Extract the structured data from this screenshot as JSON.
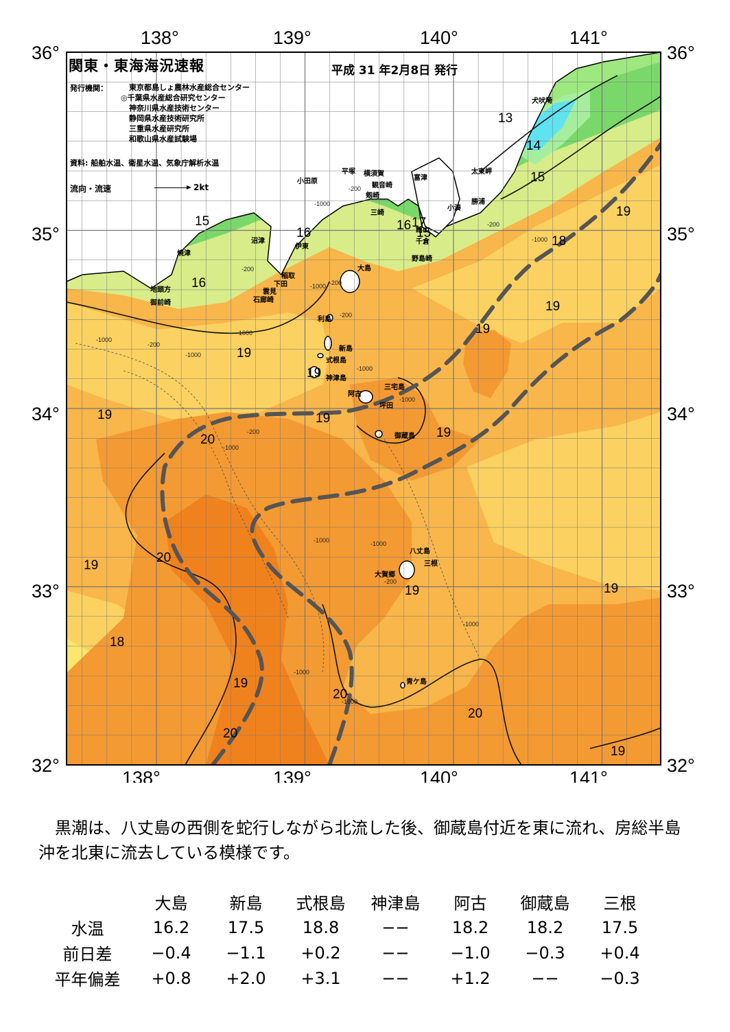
{
  "title": "関東・東海海況速報",
  "issue_date": "平成 31 年2月8日 発行",
  "issuers_label": "発行機関：",
  "issuers": [
    "東京都島しょ農林水産総合センター",
    "◎千葉県水産総合研究センター",
    "神奈川県水産技術センター",
    "静岡県水産技術研究所",
    "三重県水産研究所",
    "和歌山県水産試験場"
  ],
  "sources": "資料: 船舶水温、衛星水温、気象庁解析水温",
  "flow_legend": {
    "label": "流向・流速",
    "scale": "2kt"
  },
  "axes": {
    "lon_top": [
      "138°",
      "139°",
      "140°",
      "141°"
    ],
    "lon_bottom": [
      "138°",
      "139°",
      "140°",
      "141°"
    ],
    "lat_left": [
      "36°",
      "35°",
      "34°",
      "33°",
      "32°"
    ],
    "lat_right": [
      "36°",
      "35°",
      "34°",
      "33°",
      "32°"
    ]
  },
  "map": {
    "colors": {
      "sst_12": "#5fe3f0",
      "sst_13": "#a6ee9e",
      "sst_14": "#9ee880",
      "sst_15": "#7ad86a",
      "sst_16": "#d8ec8a",
      "sst_17": "#fbe66e",
      "sst_18": "#fbd261",
      "sst_19": "#f9b64a",
      "sst_20": "#f49a32",
      "sst_21": "#f0821e",
      "land": "#ffffff",
      "kuroshio_axis": "#555555"
    },
    "place_names": [
      "犬吠埼",
      "太東岬",
      "勝浦",
      "小湊",
      "富津",
      "横須賀",
      "平塚",
      "小田原",
      "観音崎",
      "剱崎",
      "三崎",
      "館山",
      "千倉",
      "野島崎",
      "沼津",
      "伊東",
      "稲取",
      "下田",
      "雲見",
      "石廊崎",
      "焼津",
      "地頭方",
      "御前崎",
      "大島",
      "利島",
      "新島",
      "式根島",
      "神津島",
      "三宅島",
      "阿古",
      "坪田",
      "御蔵島",
      "八丈島",
      "三根",
      "大賀郷",
      "青ケ島"
    ],
    "isotherm_labels": [
      "13",
      "14",
      "15",
      "15",
      "15",
      "16",
      "16",
      "16",
      "17",
      "18",
      "18",
      "18",
      "19",
      "19",
      "19",
      "19",
      "19",
      "19",
      "19",
      "19",
      "19",
      "19",
      "19",
      "19",
      "20",
      "20",
      "20",
      "20",
      "20"
    ],
    "depth_labels": [
      "-200",
      "-200",
      "-200",
      "-200",
      "-200",
      "-200",
      "-200",
      "-1000",
      "-1000",
      "-1000",
      "-1000",
      "-1000",
      "-1000",
      "-1000",
      "-1000",
      "-1000",
      "-1000",
      "-1000",
      "-1000",
      "-1000",
      "-1000",
      "-200"
    ]
  },
  "summary": "黒潮は、八丈島の西側を蛇行しながら北流した後、御蔵島付近を東に流れ、房総半島沖を北東に流去している模様です。",
  "table": {
    "columns": [
      "大島",
      "新島",
      "式根島",
      "神津島",
      "阿古",
      "御蔵島",
      "三根"
    ],
    "rows": [
      {
        "label": "水温",
        "values": [
          "16.2",
          "17.5",
          "18.8",
          "−−",
          "18.2",
          "18.2",
          "17.5"
        ]
      },
      {
        "label": "前日差",
        "values": [
          "−0.4",
          "−1.1",
          "+0.2",
          "−−",
          "−1.0",
          "−0.3",
          "+0.4"
        ]
      },
      {
        "label": "平年偏差",
        "values": [
          "+0.8",
          "+2.0",
          "+3.1",
          "−−",
          "+1.2",
          "−−",
          "−0.3"
        ]
      }
    ]
  }
}
